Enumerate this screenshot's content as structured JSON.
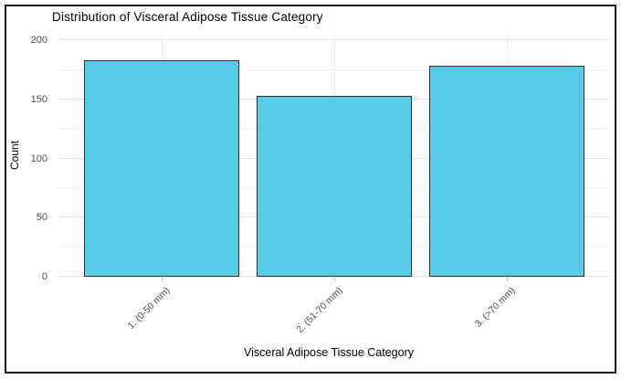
{
  "chart_data": {
    "type": "bar",
    "title": "Distribution of Visceral Adipose Tissue Category",
    "xlabel": "Visceral Adipose Tissue Category",
    "ylabel": "Count",
    "categories": [
      "1. (0-50 mm)",
      "2. (51-70 mm)",
      "3. (>70 mm)"
    ],
    "values": [
      183,
      153,
      179
    ],
    "ylim": [
      0,
      205
    ],
    "yticks": [
      0,
      50,
      100,
      150,
      200
    ],
    "minor_yticks": [
      25,
      75,
      125,
      175
    ],
    "grid": "major and minor horizontal, vertical at category centers",
    "legend": false,
    "colors": {
      "bar_fill": "#56cce8",
      "bar_border": "#333333",
      "grid_major": "#e4e4e4",
      "grid_minor": "#f2f2f2",
      "grid_vertical": "#ececec",
      "tick_mark": "#c4c4c4",
      "tick_label": "#4d4d4d",
      "title": "#000000",
      "frame": "#1a1a1a"
    }
  }
}
